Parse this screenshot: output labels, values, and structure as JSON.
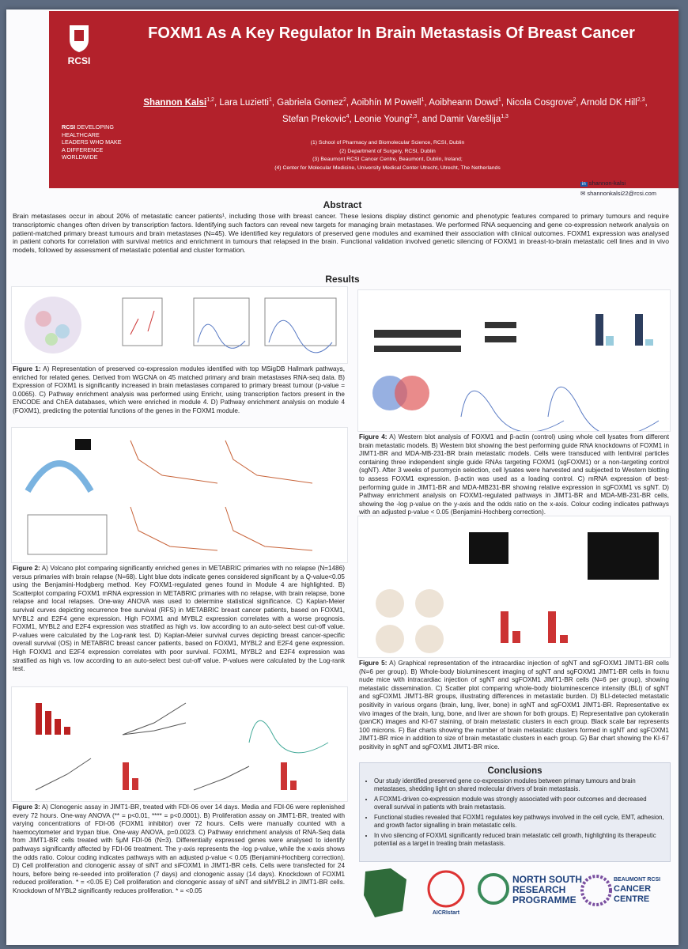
{
  "header": {
    "title": "FOXM1 As A Key Regulator In Brain Metastasis Of Breast Cancer",
    "authors": [
      {
        "name": "Shannon Kalsi",
        "aff": "1,2"
      },
      {
        "name": "Lara Luzietti",
        "aff": "1"
      },
      {
        "name": "Gabriela Gomez",
        "aff": "2"
      },
      {
        "name": "Aoibhín M Powell",
        "aff": "1"
      },
      {
        "name": "Aoibheann Dowd",
        "aff": "1"
      },
      {
        "name": "Nicola Cosgrove",
        "aff": "2"
      },
      {
        "name": "Arnold DK Hill",
        "aff": "2,3"
      },
      {
        "name": "Stefan Prekovic",
        "aff": "4"
      },
      {
        "name": "Leonie Young",
        "aff": "2,3"
      },
      {
        "name": "and Damir Varešlija",
        "aff": "1,3"
      }
    ],
    "affiliations": [
      "(1) School of Pharmacy and Biomolecular Science, RCSI, Dublin",
      "(2) Department of Surgery, RCSI, Dublin",
      "(3) Beaumont RCSI Cancer Centre, Beaumont, Dublin, Ireland;",
      "(4) Center for Molecular Medicine, University Medical Center Utrecht, Utrecht, The Netherlands"
    ],
    "institution": "RCSI",
    "tagline_lead": "RCSI",
    "tagline": "DEVELOPING HEALTHCARE LEADERS WHO MAKE A DIFFERENCE WORLDWIDE",
    "contact": [
      "shannon-kalsi",
      "shannonkalsi22@rcsi.com"
    ]
  },
  "abstract": {
    "heading": "Abstract",
    "text": "Brain metastases occur in about 20% of metastatic cancer patients¹, including those with breast cancer. These lesions display distinct genomic and phenotypic features compared to primary tumours and require transcriptomic changes often driven by transcription factors. Identifying such factors can reveal new targets for managing brain metastases. We performed RNA sequencing and gene co-expression network analysis on patient-matched primary breast tumours and brain metastases (N=45). We identified key regulators of preserved gene modules and examined their association with clinical outcomes. FOXM1 expression was analysed in patient cohorts for correlation with survival metrics and enrichment in tumours that relapsed in the brain. Functional validation involved genetic silencing of FOXM1 in breast-to-brain metastatic cell lines and in vivo models, followed by assessment of metastatic potential and cluster formation."
  },
  "results": {
    "heading": "Results",
    "figures": [
      {
        "label": "Figure 1:",
        "caption": "A) Representation of preserved co-expression modules identified with top MSigDB Hallmark pathways, enriched for related genes. Derived from WGCNA on 45 matched primary and brain metastases RNA-seq data. B) Expression of FOXM1 is significantly increased in brain metastases compared to primary breast tumour (p-value = 0.0065). C) Pathway enrichment analysis was performed using Enrichr, using transcription factors present in the ENCODE and ChEA databases, which were enriched in module 4. D) Pathway enrichment analysis on module 4 (FOXM1), predicting the potential functions of the genes in the FOXM1 module."
      },
      {
        "label": "Figure 2:",
        "caption": "A) Volcano plot comparing significantly enriched genes in METABRIC primaries with no relapse (N=1486) versus primaries with brain relapse (N=68). Light blue dots indicate genes considered significant by a Q-value<0.05 using the Benjamini-Hodgberg method. Key FOXM1-regulated genes found in Module 4 are highlighted. B) Scatterplot comparing FOXM1 mRNA expression in METABRIC primaries with no relapse, with brain relapse, bone relapse and local relapses. One-way ANOVA was used to determine statistical significance. C) Kaplan-Meier survival curves depicting recurrence free survival (RFS) in METABRIC breast cancer patients, based on FOXM1, MYBL2 and E2F4 gene expression. High FOXM1 and MYBL2 expression correlates with a worse prognosis. FOXM1, MYBL2 and E2F4 expression was stratified as high vs. low according to an auto-select best cut-off value. P-values were calculated by the Log-rank test. D) Kaplan-Meier survival curves depicting breast cancer-specific overall survival (OS) in METABRIC breast cancer patients, based on FOXM1, MYBL2 and E2F4 gene expression. High FOXM1 and E2F4 expression correlates with poor survival. FOXM1, MYBL2 and E2F4 expression was stratified as high vs. low according to an auto-select best cut-off value. P-values were calculated by the Log-rank test."
      },
      {
        "label": "Figure 3:",
        "caption": "A) Clonogenic assay in JIMT1-BR, treated with FDI-06 over 14 days. Media and FDI-06 were replenished every 72 hours. One-way ANOVA (** = p<0.01, **** = p<0.0001). B) Proliferation assay on JIMT1-BR, treated with varying concentrations of FDI-06 (FOXM1 inhibitor) over 72 hours. Cells were manually counted with a haemocytometer and trypan blue. One-way ANOVA, p=0.0023. C) Pathway enrichment analysis of RNA-Seq data from JIMT1-BR cells treated with 5μM FDI-06 (N=3). Differentially expressed genes were analysed to identify pathways significantly affected by FDI-06 treatment. The y-axis represents the -log p-value, while the x-axis shows the odds ratio. Colour coding indicates pathways with an adjusted p-value < 0.05 (Benjamini-Hochberg correction). D) Cell proliferation and clonogenic assay of siNT and siFOXM1 in JIMT1-BR cells. Cells were transfected for 24 hours, before being re-seeded into proliferation (7 days) and clonogenic assay (14 days). Knockdown of FOXM1 reduced proliferation. * = <0.05 E) Cell proliferation and clonogenic assay of siNT and siMYBL2 in JIMT1-BR cells. Knockdown of MYBL2 significantly reduces proliferation. * = <0.05"
      },
      {
        "label": "Figure 4:",
        "caption": "A) Western blot analysis of FOXM1 and β-actin (control) using whole cell lysates from different brain metastatic models. B) Western blot showing the best performing guide RNA knockdowns of FOXM1 in JIMT1-BR and MDA-MB-231-BR brain metastatic models. Cells were transduced with lentiviral particles containing three independent single guide RNAs targeting FOXM1 (sgFOXM1) or a non-targeting control (sgNT). After 3 weeks of puromycin selection, cell lysates were harvested and subjected to Western blotting to assess FOXM1 expression. β-actin was used as a loading control. C) mRNA expression of best-performing guide in JIMT1-BR and MDA-MB231-BR showing relative expression in sgFOXM1 vs sgNT. D) Pathway enrichment analysis on FOXM1-regulated pathways in JIMT1-BR and MDA-MB-231-BR cells, showing the -log p-value on the y-axis and the odds ratio on the x-axis. Colour coding indicates pathways with an adjusted p-value < 0.05 (Benjamini-Hochberg correction)."
      },
      {
        "label": "Figure 5:",
        "caption": "A) Graphical representation of the intracardiac injection of sgNT and sgFOXM1 JIMT1-BR cells (N=6 per group). B) Whole-body bioluminescent imaging of sgNT and sgFOXM1 JIMT1-BR cells in foxnu nude mice with intracardiac injection of sgNT and sgFOXM1 JIMT1-BR cells (N=6 per group), showing metastatic dissemination. C) Scatter plot comparing whole-body bioluminescence intensity (BLI) of sgNT and sgFOXM1 JIMT1-BR groups, illustrating differences in metastatic burden. D) BLI-detected metastatic positivity in various organs (brain, lung, liver, bone) in sgNT and sgFOXM1 JIMT1-BR. Representative ex vivo images of the brain, lung, bone, and liver are shown for both groups. E) Representative pan cytokeratin (panCK) images and KI-67 staining, of brain metastatic clusters in each group. Black scale bar represents 100 microns. F) Bar charts showing the number of brain metastatic clusters formed in sgNT and sgFOXM1 JIMT1-BR mice in addition to size of brain metastatic clusters in each group. G) Bar chart showing the KI-67 positivity in sgNT and sgFOXM1 JIMT1-BR mice."
      }
    ]
  },
  "conclusions": {
    "heading": "Conclusions",
    "bullets": [
      "Our study identified preserved gene co-expression modules between primary tumours and brain metastases, shedding light on shared molecular drivers of brain metastasis.",
      "A FOXM1-driven co-expression module was strongly associated with poor outcomes and decreased overall survival in patients with brain metastasis.",
      "Functional studies revealed that FOXM1 regulates key pathways involved in the cell cycle, EMT, adhesion, and growth factor signalling in brain metastatic cells.",
      "In vivo silencing of FOXM1 significantly reduced brain metastatic cell growth, highlighting its therapeutic potential as a target in treating brain metastasis."
    ]
  },
  "logos": [
    "AICRIstart",
    "NORTH SOUTH",
    "RESEARCH",
    "PROGRAMME",
    "BEAUMONT RCSI",
    "CANCER",
    "CENTRE"
  ]
}
